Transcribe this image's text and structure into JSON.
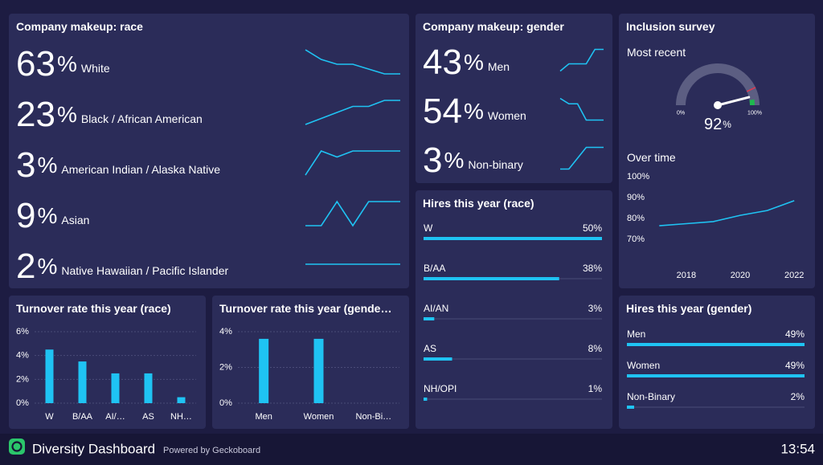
{
  "footer": {
    "title": "Diversity Dashboard",
    "powered": "Powered by Geckoboard",
    "time": "13:54"
  },
  "chart_data": [
    {
      "type": "sparkline-list",
      "title": "Company makeup: race",
      "unit": "%",
      "color": "#1fc3f3",
      "series": [
        {
          "name": "White",
          "value": 63,
          "values": [
            68,
            66,
            65,
            65,
            64,
            63,
            63
          ]
        },
        {
          "name": "Black / African American",
          "value": 23,
          "values": [
            19,
            20,
            21,
            22,
            22,
            23,
            23
          ]
        },
        {
          "name": "American Indian / Alaska Native",
          "value": 3,
          "values": [
            1,
            3,
            2.5,
            3,
            3,
            3,
            3
          ]
        },
        {
          "name": "Asian",
          "value": 9,
          "values": [
            7,
            7,
            9,
            7,
            9,
            9,
            9
          ]
        },
        {
          "name": "Native Hawaiian / Pacific Islander",
          "value": 2,
          "values": [
            2,
            2,
            2,
            2,
            2,
            2,
            2
          ]
        }
      ]
    },
    {
      "type": "sparkline-list",
      "title": "Company makeup: gender",
      "unit": "%",
      "color": "#1fc3f3",
      "series": [
        {
          "name": "Men",
          "value": 43,
          "values": [
            40,
            41,
            41,
            41,
            43,
            43
          ]
        },
        {
          "name": "Women",
          "value": 54,
          "values": [
            58,
            57,
            57,
            54,
            54,
            54
          ]
        },
        {
          "name": "Non-binary",
          "value": 3,
          "values": [
            1,
            1,
            2,
            3,
            3,
            3
          ]
        }
      ]
    },
    {
      "type": "gauge",
      "title": "Inclusion survey",
      "subtitle": "Most recent",
      "value": 92,
      "unit": "%",
      "ticks": [
        {
          "value": 0,
          "label": "0%"
        },
        {
          "value": 100,
          "label": "100%"
        }
      ],
      "marker": {
        "value": 86,
        "color": "#e2374f"
      },
      "band": {
        "from": 95,
        "to": 100,
        "color": "#1fb84f"
      }
    },
    {
      "type": "line",
      "subtitle": "Over time",
      "color": "#1fc3f3",
      "x": [
        2017,
        2018,
        2019,
        2020,
        2021,
        2022
      ],
      "values": [
        76.5,
        77.5,
        78.5,
        81.5,
        83.8,
        88.5
      ],
      "xlim": [
        2015.8,
        2022.5
      ],
      "xticks": [
        2018,
        2020,
        2022
      ],
      "ylim": [
        62,
        100
      ],
      "yticks": [
        {
          "value": 70,
          "label": "70%"
        },
        {
          "value": 80,
          "label": "80%"
        },
        {
          "value": 90,
          "label": "90%"
        },
        {
          "value": 100,
          "label": "100%"
        }
      ]
    },
    {
      "type": "progress",
      "title": "Hires this year (race)",
      "color": "#1fc3f3",
      "categories": [
        "W",
        "B/AA",
        "AI/AN",
        "AS",
        "NH/OPI"
      ],
      "values": [
        50,
        38,
        3,
        8,
        1
      ],
      "value_labels": [
        "50%",
        "38%",
        "3%",
        "8%",
        "1%"
      ],
      "xlim": [
        0,
        50
      ]
    },
    {
      "type": "bar",
      "title": "Turnover rate this year (race)",
      "color": "#1fc3f3",
      "categories": [
        "W",
        "B/AA",
        "AI/…",
        "AS",
        "NH…"
      ],
      "values": [
        4.5,
        3.5,
        2.5,
        2.5,
        0.5
      ],
      "ylim": [
        0,
        6
      ],
      "yticks": [
        {
          "value": 0,
          "label": "0%"
        },
        {
          "value": 2,
          "label": "2%"
        },
        {
          "value": 4,
          "label": "4%"
        },
        {
          "value": 6,
          "label": "6%"
        }
      ]
    },
    {
      "type": "bar",
      "title": "Turnover rate this year (gende…",
      "color": "#1fc3f3",
      "categories": [
        "Men",
        "Women",
        "Non-Bi…"
      ],
      "values": [
        3.6,
        3.6,
        0
      ],
      "ylim": [
        0,
        4
      ],
      "yticks": [
        {
          "value": 0,
          "label": "0%"
        },
        {
          "value": 2,
          "label": "2%"
        },
        {
          "value": 4,
          "label": "4%"
        }
      ]
    },
    {
      "type": "progress",
      "title": "Hires this year (gender)",
      "color": "#1fc3f3",
      "categories": [
        "Men",
        "Women",
        "Non-Binary"
      ],
      "values": [
        49,
        49,
        2
      ],
      "value_labels": [
        "49%",
        "49%",
        "2%"
      ],
      "xlim": [
        0,
        49
      ]
    }
  ]
}
